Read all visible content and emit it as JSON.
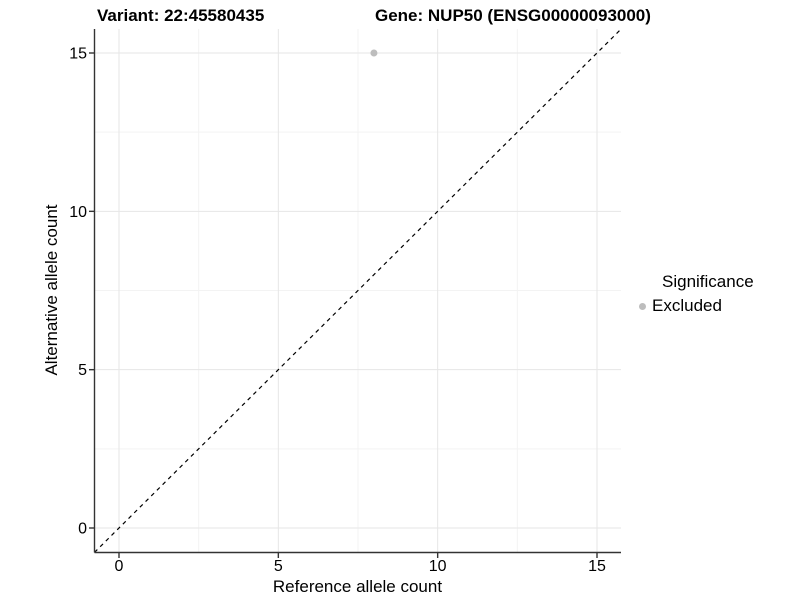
{
  "header": {
    "variant_title": "Variant: 22:45580435",
    "gene_title": "Gene: NUP50 (ENSG00000093000)"
  },
  "chart_data": {
    "type": "scatter",
    "xlabel": "Reference allele count",
    "ylabel": "Alternative allele count",
    "xlim": [
      -0.77,
      15.75
    ],
    "ylim": [
      -0.77,
      15.75
    ],
    "x_ticks": [
      0,
      5,
      10,
      15
    ],
    "y_ticks": [
      0,
      5,
      10,
      15
    ],
    "x_minor_ticks": [
      2.5,
      7.5,
      12.5
    ],
    "y_minor_ticks": [
      2.5,
      7.5,
      12.5
    ],
    "grid": true,
    "points": [
      {
        "x": 8,
        "y": 15,
        "series": "Excluded"
      }
    ],
    "reference_line": {
      "slope": 1,
      "intercept": 0,
      "style": "dashed"
    },
    "legend": {
      "title": "Significance",
      "position": "right",
      "entries": [
        {
          "label": "Excluded",
          "color": "#bdbdbd"
        }
      ]
    },
    "colors": {
      "point": "#bdbdbd",
      "grid_major": "#e6e6e6",
      "grid_minor": "#f3f3f3",
      "axis": "#333333",
      "tick_label": "#000000",
      "reference_line": "#000000"
    }
  }
}
